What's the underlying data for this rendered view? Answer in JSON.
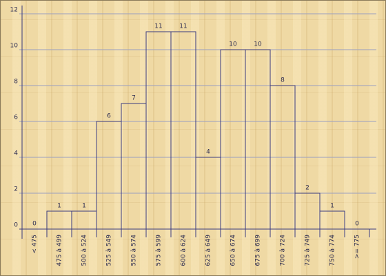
{
  "chart_data": {
    "type": "bar",
    "categories": [
      "< 475",
      "475 à 499",
      "500 à 524",
      "525 à 549",
      "550 à 574",
      "575 à 599",
      "600 à 624",
      "625 à 649",
      "650 à 674",
      "675 à 699",
      "700 à 724",
      "725 à 749",
      "750 à 774",
      ">= 775"
    ],
    "values": [
      0,
      1,
      1,
      6,
      7,
      11,
      11,
      4,
      10,
      10,
      8,
      2,
      1,
      0
    ],
    "color": "#3a3a80",
    "ylim": [
      0,
      12
    ],
    "yticks": [
      0,
      2,
      4,
      6,
      8,
      10,
      12
    ],
    "grid": true
  }
}
